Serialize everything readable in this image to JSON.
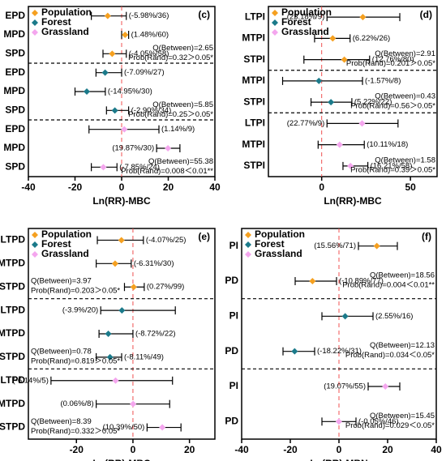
{
  "chart_data": [
    {
      "type": "forest",
      "panel_label": "(c)",
      "xlabel": "Ln(RR)-MBC",
      "xlim": [
        -40,
        40
      ],
      "xticks": [
        -40,
        -20,
        0,
        20,
        40
      ],
      "legend": "upper left",
      "stats_position": "right",
      "series": [
        {
          "name": "Population",
          "color": "#f5a020",
          "categories": [
            "EPD",
            "MPD",
            "SPD"
          ],
          "values": [
            -5.98,
            1.48,
            -4.05
          ],
          "lower": [
            -13,
            0,
            -8
          ],
          "upper": [
            2,
            3,
            2
          ],
          "value_labels": [
            "(-5.98%/36)",
            "(1.48%/60)",
            "(-4.05%/58)"
          ],
          "q_text": "Q(Between)=2.65",
          "p_text": "Prob(Rand)=0.32＞0.05*"
        },
        {
          "name": "Forest",
          "color": "#1b7a8a",
          "categories": [
            "EPD",
            "MPD",
            "SPD"
          ],
          "values": [
            -7.09,
            -14.95,
            -2.9
          ],
          "lower": [
            -11,
            -20,
            -6.5
          ],
          "upper": [
            0,
            -7,
            3
          ],
          "value_labels": [
            "(-7.09%/27)",
            "(-14.95%/30)",
            "(-2.90%/34)"
          ],
          "q_text": "Q(Between)=5.85",
          "p_text": "Prob(Rand)=0.25＞0.05*"
        },
        {
          "name": "Grassland",
          "color": "#f4a6ee",
          "categories": [
            "EPD",
            "MPD",
            "SPD"
          ],
          "values": [
            1.14,
            19.87,
            -7.85
          ],
          "lower": [
            -14,
            15,
            -13
          ],
          "upper": [
            16,
            25,
            -2
          ],
          "value_labels": [
            "(1.14%/9)",
            "(19.87%/30)",
            "(-7.85%/24)"
          ],
          "q_text": "Q(Between)=55.38",
          "p_text": "Prob(Rand)=0.008＜0.01**"
        }
      ]
    },
    {
      "type": "forest",
      "panel_label": "(d)",
      "xlabel": "Ln(RR)-MBC",
      "xlim": [
        -30,
        65
      ],
      "xticks": [
        0,
        50
      ],
      "legend": "upper left",
      "stats_position": "right",
      "series": [
        {
          "name": "Population",
          "color": "#f5a020",
          "categories": [
            "LTPI",
            "MTPI",
            "STPI"
          ],
          "values": [
            23.18,
            6.22,
            12.76
          ],
          "lower": [
            3,
            -4,
            -10
          ],
          "upper": [
            44,
            16,
            27
          ],
          "value_labels": [
            "(23.18%/9)",
            "(6.22%/26)",
            "(12.76%/80)"
          ],
          "q_text": "Q(Between)=2.91",
          "p_text": "Prob(Rand)=0.201＞0.05*"
        },
        {
          "name": "Forest",
          "color": "#1b7a8a",
          "categories": [
            "MTPI",
            "STPI"
          ],
          "values": [
            -1.57,
            5.22
          ],
          "lower": [
            -22,
            -6
          ],
          "upper": [
            23,
            17
          ],
          "value_labels": [
            "(-1.57%/8)",
            "(5.22%/22)"
          ],
          "q_text": "Q(Between)=0.43",
          "p_text": "Prob(Rand)=0.56＞0.05*"
        },
        {
          "name": "Grassland",
          "color": "#f4a6ee",
          "categories": [
            "LTPI",
            "MTPI",
            "STPI"
          ],
          "values": [
            22.77,
            10.11,
            16.21
          ],
          "lower": [
            3,
            -2,
            12
          ],
          "upper": [
            43,
            24,
            26
          ],
          "value_labels": [
            "(22.77%/9)",
            "(10.11%/18)",
            "(16.21%/58)"
          ],
          "q_text": "Q(Between)=1.58",
          "p_text": "Prob(Rand)=0.39＞0.05*"
        }
      ]
    },
    {
      "type": "forest",
      "panel_label": "(e)",
      "xlabel": "Ln(RR)-MBC",
      "xlim": [
        -37,
        29
      ],
      "xticks": [
        -20,
        0,
        20
      ],
      "legend": "upper left",
      "stats_position": "left",
      "series": [
        {
          "name": "Population",
          "color": "#f5a020",
          "categories": [
            "LTPD",
            "MTPD",
            "STPD"
          ],
          "values": [
            -4.07,
            -6.31,
            0.27
          ],
          "lower": [
            -12.6,
            -13,
            -3
          ],
          "upper": [
            3.7,
            -0.6,
            4
          ],
          "value_labels": [
            "(-4.07%/25)",
            "(-6.31%/30)",
            "(0.27%/99)"
          ],
          "q_text": "Q(Between)=3.97",
          "p_text": "Prob(Rand)=0.203＞0.05*"
        },
        {
          "name": "Forest",
          "color": "#1b7a8a",
          "categories": [
            "LTPD",
            "MTPD",
            "STPD"
          ],
          "values": [
            -3.9,
            -8.72,
            -8.11
          ],
          "lower": [
            -11.4,
            -12,
            -13
          ],
          "upper": [
            15,
            0,
            -4
          ],
          "value_labels": [
            "(-3.9%/20)",
            "(-8.72%/22)",
            "(-8.11%/49)"
          ],
          "q_text": "Q(Between)=0.78",
          "p_text": "Prob(Rand)=0.819＞0.05*"
        },
        {
          "name": "Grassland",
          "color": "#f4a6ee",
          "categories": [
            "LTPD",
            "MTPD",
            "STPD"
          ],
          "values": [
            -6.14,
            0.06,
            10.39
          ],
          "lower": [
            -29,
            -13,
            5
          ],
          "upper": [
            14,
            13,
            17
          ],
          "value_labels": [
            "(-6.14%/5)",
            "(0.06%/8)",
            "(10.39%/50)"
          ],
          "q_text": "Q(Between)=8.39",
          "p_text": "Prob(Rand)=0.332＞0.05*"
        }
      ]
    },
    {
      "type": "forest",
      "panel_label": "(f)",
      "xlabel": "Ln(RR)-MBN",
      "xlim": [
        -40,
        40
      ],
      "xticks": [
        -40,
        -20,
        0,
        20,
        40
      ],
      "legend": "upper left",
      "stats_position": "right",
      "series": [
        {
          "name": "Population",
          "color": "#f5a020",
          "categories": [
            "PI",
            "PD"
          ],
          "values": [
            15.56,
            -10.89
          ],
          "lower": [
            8,
            -18
          ],
          "upper": [
            24,
            -1
          ],
          "value_labels": [
            "(15.56%/71)",
            "(-10.89%/77)"
          ],
          "q_text": "Q(Between)=18.56",
          "p_text": "Prob(Rand)=0.004＜0.01**"
        },
        {
          "name": "Forest",
          "color": "#1b7a8a",
          "categories": [
            "PI",
            "PD"
          ],
          "values": [
            2.55,
            -18.22
          ],
          "lower": [
            -7,
            -23
          ],
          "upper": [
            14,
            -10
          ],
          "value_labels": [
            "(2.55%/16)",
            "(-18.22%/31)"
          ],
          "q_text": "Q(Between)=12.13",
          "p_text": "Prob(Rand)=0.034＜0.05*"
        },
        {
          "name": "Grassland",
          "color": "#f4a6ee",
          "categories": [
            "PI",
            "PD"
          ],
          "values": [
            19.07,
            -0.05
          ],
          "lower": [
            12,
            -7
          ],
          "upper": [
            25,
            7
          ],
          "value_labels": [
            "(19.07%/55)",
            "(-0.05%/46)"
          ],
          "q_text": "Q(Between)=15.45",
          "p_text": "Prob(Rand)=0.029＜0.05*"
        }
      ]
    }
  ]
}
